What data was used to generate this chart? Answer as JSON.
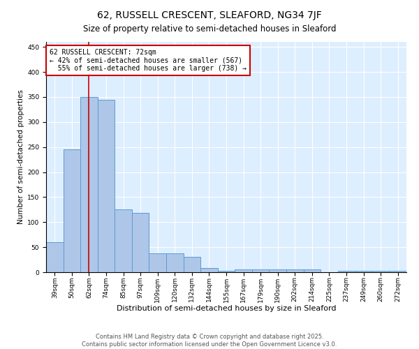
{
  "title": "62, RUSSELL CRESCENT, SLEAFORD, NG34 7JF",
  "subtitle": "Size of property relative to semi-detached houses in Sleaford",
  "xlabel": "Distribution of semi-detached houses by size in Sleaford",
  "ylabel": "Number of semi-detached properties",
  "categories": [
    "39sqm",
    "50sqm",
    "62sqm",
    "74sqm",
    "85sqm",
    "97sqm",
    "109sqm",
    "120sqm",
    "132sqm",
    "144sqm",
    "155sqm",
    "167sqm",
    "179sqm",
    "190sqm",
    "202sqm",
    "214sqm",
    "225sqm",
    "237sqm",
    "249sqm",
    "260sqm",
    "272sqm"
  ],
  "values": [
    60,
    245,
    350,
    345,
    125,
    118,
    38,
    38,
    30,
    8,
    3,
    5,
    5,
    6,
    6,
    5,
    0,
    3,
    3,
    3,
    3
  ],
  "bar_color": "#aec6e8",
  "bar_edge_color": "#5b9bd5",
  "vline_x_index": 2,
  "vline_color": "#cc0000",
  "annotation_text": "62 RUSSELL CRESCENT: 72sqm\n← 42% of semi-detached houses are smaller (567)\n  55% of semi-detached houses are larger (738) →",
  "annotation_box_color": "#ffffff",
  "annotation_box_edge": "#cc0000",
  "ylim": [
    0,
    460
  ],
  "yticks": [
    0,
    50,
    100,
    150,
    200,
    250,
    300,
    350,
    400,
    450
  ],
  "background_color": "#ddeeff",
  "footer_text": "Contains HM Land Registry data © Crown copyright and database right 2025.\nContains public sector information licensed under the Open Government Licence v3.0.",
  "title_fontsize": 10,
  "subtitle_fontsize": 8.5,
  "xlabel_fontsize": 8,
  "ylabel_fontsize": 7.5,
  "tick_fontsize": 6.5,
  "annotation_fontsize": 7,
  "footer_fontsize": 6
}
